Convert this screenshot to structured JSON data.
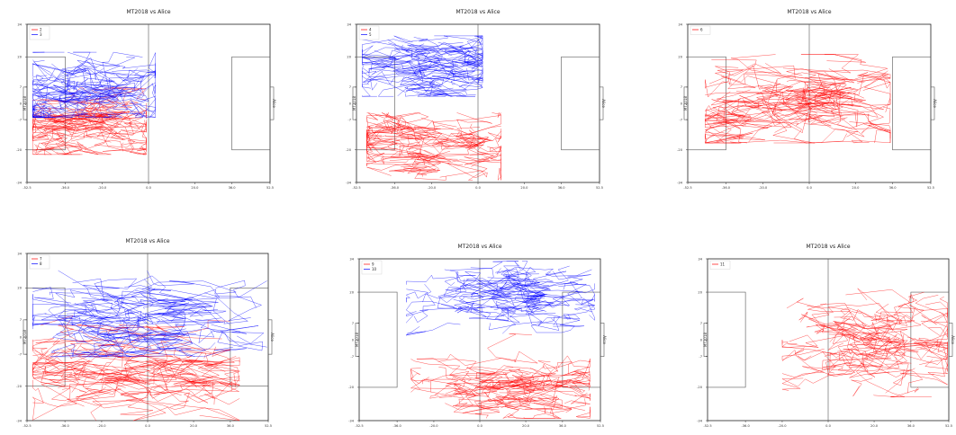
{
  "chart_data": [
    {
      "type": "line",
      "title": "MT2018 vs Alice",
      "left_label": "MT2018",
      "right_label": "Alice",
      "xlim": [
        -52.5,
        52.5
      ],
      "ylim": [
        -34,
        34
      ],
      "xticks": [
        "-52.5",
        "-36.0",
        "-20.0",
        "0.0",
        "20.0",
        "36.0",
        "52.5"
      ],
      "yticks": [
        "34",
        "20",
        "7",
        "0",
        "-7",
        "-20",
        "-34"
      ],
      "legend": "top-left",
      "series": [
        {
          "name": "2",
          "color": "#ff0000",
          "center": [
            -24,
            -10
          ],
          "spread": [
            24,
            9
          ],
          "xrange": [
            -50,
            -1
          ],
          "yrange": [
            -22,
            7
          ],
          "segments": 70
        },
        {
          "name": "3",
          "color": "#0000ff",
          "center": [
            -24,
            3
          ],
          "spread": [
            24,
            12
          ],
          "xrange": [
            -50,
            3
          ],
          "yrange": [
            -6,
            22
          ],
          "segments": 70
        }
      ]
    },
    {
      "type": "line",
      "title": "MT2018 vs Alice",
      "left_label": "MT2018",
      "right_label": "Alice",
      "xlim": [
        -52.5,
        52.5
      ],
      "ylim": [
        -34,
        34
      ],
      "xticks": [
        "-52.5",
        "-36.0",
        "-20.0",
        "0.0",
        "20.0",
        "36.0",
        "52.5"
      ],
      "yticks": [
        "34",
        "20",
        "7",
        "0",
        "-7",
        "-20",
        "-34"
      ],
      "legend": "top-left",
      "series": [
        {
          "name": "4",
          "color": "#ff0000",
          "center": [
            -22,
            -18
          ],
          "spread": [
            24,
            9
          ],
          "xrange": [
            -48,
            10
          ],
          "yrange": [
            -33,
            -4
          ],
          "segments": 70
        },
        {
          "name": "5",
          "color": "#0000ff",
          "center": [
            -22,
            15
          ],
          "spread": [
            24,
            9
          ],
          "xrange": [
            -50,
            2
          ],
          "yrange": [
            3,
            29
          ],
          "segments": 70
        }
      ]
    },
    {
      "type": "line",
      "title": "MT2018 vs Alice",
      "left_label": "MT2018",
      "right_label": "Alice",
      "xlim": [
        -52.5,
        52.5
      ],
      "ylim": [
        -34,
        34
      ],
      "xticks": [
        "-52.5",
        "-36.0",
        "-20.0",
        "0.0",
        "20.0",
        "36.0",
        "52.5"
      ],
      "yticks": [
        "34",
        "20",
        "7",
        "0",
        "-7",
        "-20",
        "-34"
      ],
      "legend": "top-left",
      "series": [
        {
          "name": "6",
          "color": "#ff0000",
          "center": [
            -6,
            0
          ],
          "spread": [
            30,
            12
          ],
          "xrange": [
            -45,
            35
          ],
          "yrange": [
            -17,
            21
          ],
          "segments": 85
        }
      ]
    },
    {
      "type": "line",
      "title": "MT2018 vs Alice",
      "left_label": "MT2018",
      "right_label": "Alice",
      "xlim": [
        -52.5,
        52.5
      ],
      "ylim": [
        -34,
        34
      ],
      "xticks": [
        "-52.5",
        "-36.0",
        "-20.0",
        "0.0",
        "20.0",
        "36.0",
        "52.5"
      ],
      "yticks": [
        "34",
        "20",
        "7",
        "0",
        "-7",
        "-20",
        "-34"
      ],
      "legend": "top-left",
      "series": [
        {
          "name": "7",
          "color": "#ff0000",
          "center": [
            -8,
            -14
          ],
          "spread": [
            30,
            10
          ],
          "xrange": [
            -50,
            40
          ],
          "yrange": [
            -34,
            12
          ],
          "segments": 80
        },
        {
          "name": "8",
          "color": "#0000ff",
          "center": [
            -6,
            8
          ],
          "spread": [
            30,
            10
          ],
          "xrange": [
            -50,
            52
          ],
          "yrange": [
            -8,
            34
          ],
          "segments": 80
        }
      ]
    },
    {
      "type": "line",
      "title": "MT2018 vs Alice",
      "left_label": "MT2018",
      "right_label": "Alice",
      "xlim": [
        -52.5,
        52.5
      ],
      "ylim": [
        -34,
        34
      ],
      "xticks": [
        "-52.5",
        "-36.0",
        "-20.0",
        "0.0",
        "20.0",
        "36.0",
        "52.5"
      ],
      "yticks": [
        "34",
        "20",
        "7",
        "0",
        "-7",
        "-20",
        "-34"
      ],
      "legend": "top-left",
      "series": [
        {
          "name": "9",
          "color": "#ff0000",
          "center": [
            10,
            -22
          ],
          "spread": [
            22,
            8
          ],
          "xrange": [
            -30,
            48
          ],
          "yrange": [
            -33,
            8
          ],
          "segments": 80
        },
        {
          "name": "10",
          "color": "#0000ff",
          "center": [
            14,
            19
          ],
          "spread": [
            20,
            8
          ],
          "xrange": [
            -32,
            50
          ],
          "yrange": [
            0,
            33
          ],
          "segments": 80
        }
      ]
    },
    {
      "type": "line",
      "title": "MT2018 vs Alice",
      "left_label": "MT2018",
      "right_label": "Alice",
      "xlim": [
        -52.5,
        52.5
      ],
      "ylim": [
        -34,
        34
      ],
      "xticks": [
        "-52.5",
        "-36.0",
        "-20.0",
        "0.0",
        "20.0",
        "36.0",
        "52.5"
      ],
      "yticks": [
        "34",
        "20",
        "7",
        "0",
        "-7",
        "-20",
        "-34"
      ],
      "legend": "top-left",
      "series": [
        {
          "name": "11",
          "color": "#ff0000",
          "center": [
            20,
            -2
          ],
          "spread": [
            22,
            11
          ],
          "xrange": [
            -20,
            52
          ],
          "yrange": [
            -24,
            22
          ],
          "segments": 80
        }
      ]
    }
  ]
}
